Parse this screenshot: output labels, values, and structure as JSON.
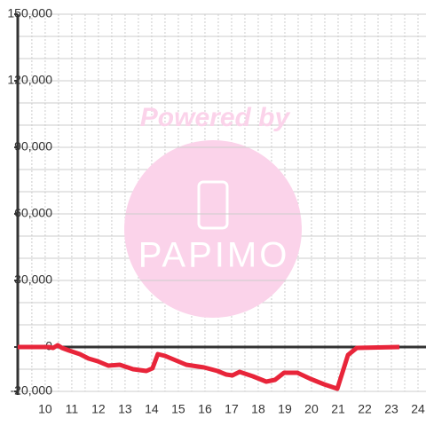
{
  "chart_data": {
    "type": "line",
    "x": [
      8.97,
      10.13,
      10.3,
      10.47,
      10.63,
      10.9,
      11.3,
      11.63,
      11.97,
      12.37,
      12.8,
      13.3,
      13.8,
      14.03,
      14.23,
      14.5,
      14.9,
      15.3,
      15.97,
      16.47,
      16.8,
      17.03,
      17.3,
      17.8,
      18.3,
      18.63,
      18.97,
      19.47,
      19.97,
      20.47,
      20.97,
      21.37,
      21.7,
      23.3
    ],
    "series": [
      {
        "color": "#e8253a",
        "values": [
          0,
          0,
          -400,
          800,
          -400,
          -1600,
          -3200,
          -5200,
          -6400,
          -8400,
          -8000,
          -10000,
          -10800,
          -9600,
          -3200,
          -4000,
          -6000,
          -8000,
          -9200,
          -10800,
          -12400,
          -12800,
          -11200,
          -13200,
          -15600,
          -14800,
          -11600,
          -11600,
          -14400,
          -16800,
          -18800,
          -3600,
          -400,
          0
        ]
      }
    ],
    "xlim": [
      8.97,
      24.3
    ],
    "xticks": [
      10,
      11,
      12,
      13,
      14,
      15,
      16,
      17,
      18,
      19,
      20,
      21,
      22,
      23,
      24
    ],
    "xminorticks": [
      9.5,
      10.5,
      11.5,
      12.5,
      13.5,
      14.5,
      15.5,
      16.5,
      17.5,
      18.5,
      19.5,
      20.5,
      21.5,
      22.5,
      23.5
    ],
    "ylim": [
      -20000,
      150000
    ],
    "yticks": [
      {
        "value": -20000,
        "label": "-20,000"
      },
      0,
      {
        "value": 30000,
        "label": "30,000"
      },
      {
        "value": 60000,
        "label": "60,000"
      },
      {
        "value": 90000,
        "label": "90,000"
      },
      {
        "value": 120000,
        "label": "120,000"
      },
      {
        "value": 150000,
        "label": "150,000"
      }
    ],
    "yminorticks": [
      -10000,
      10000,
      20000,
      40000,
      50000,
      70000,
      80000,
      100000,
      110000,
      130000,
      140000
    ],
    "grid": true,
    "watermark": {
      "top": "Powered by",
      "logo": "PAPIMO"
    }
  }
}
